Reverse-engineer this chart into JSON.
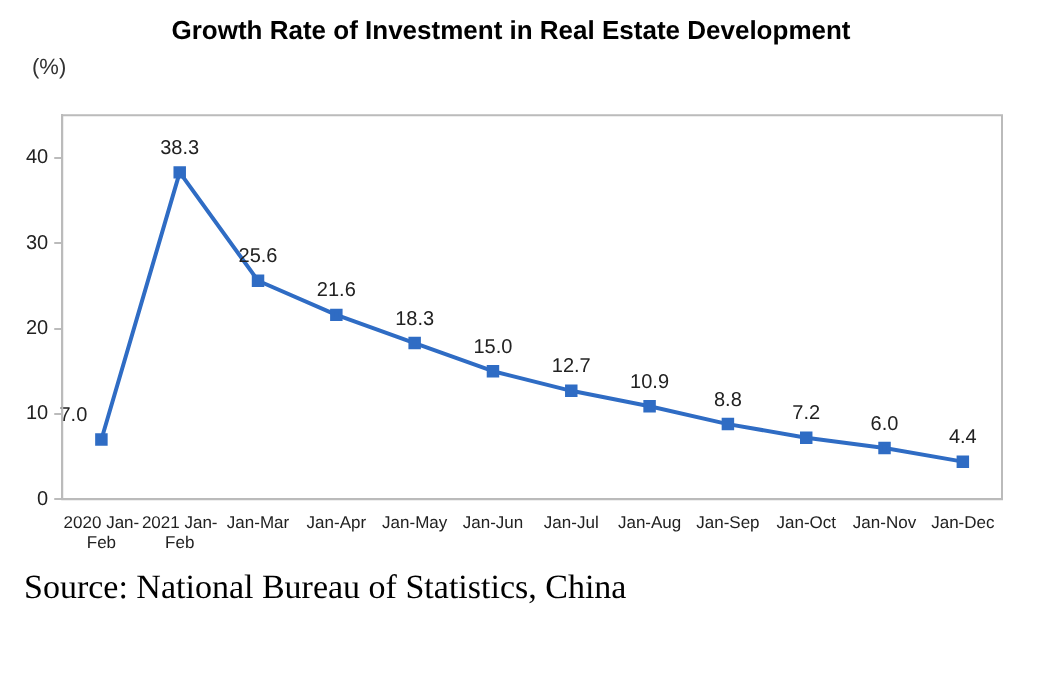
{
  "chart_data": {
    "type": "line",
    "title": "Growth Rate of Investment in Real Estate Development",
    "ylabel": "(%)",
    "categories": [
      "2020 Jan-Feb",
      "2021 Jan-Feb",
      "Jan-Mar",
      "Jan-Apr",
      "Jan-May",
      "Jan-Jun",
      "Jan-Jul",
      "Jan-Aug",
      "Jan-Sep",
      "Jan-Oct",
      "Jan-Nov",
      "Jan-Dec"
    ],
    "series": [
      {
        "color": "#2f6cc4",
        "values": [
          7.0,
          38.3,
          25.6,
          21.6,
          18.3,
          15.0,
          12.7,
          10.9,
          8.8,
          7.2,
          6.0,
          4.4
        ],
        "value_labels": [
          "7.0",
          "38.3",
          "25.6",
          "21.6",
          "18.3",
          "15.0",
          "12.7",
          "10.9",
          "8.8",
          "7.2",
          "6.0",
          "4.4"
        ]
      }
    ],
    "ylim": [
      0,
      45
    ],
    "yticks": [
      0,
      10,
      20,
      30,
      40
    ],
    "grid": false,
    "legend": false,
    "marker": "square",
    "line_style": "solid",
    "annotations": [
      "Source: National Bureau of Statistics, China"
    ]
  }
}
